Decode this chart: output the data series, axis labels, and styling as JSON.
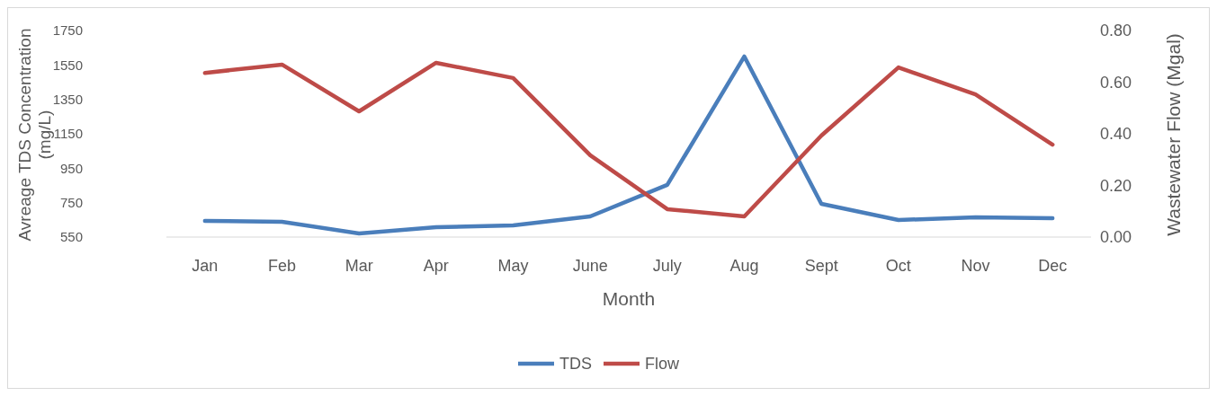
{
  "chart_data": {
    "type": "line",
    "xlabel": "Month",
    "ylabel": "Avreage TDS Concentration (mg/L)",
    "y2label": "Wastewater Flow (Mgal)",
    "categories": [
      "Jan",
      "Feb",
      "Mar",
      "Apr",
      "May",
      "June",
      "July",
      "Aug",
      "Sept",
      "Oct",
      "Nov",
      "Dec"
    ],
    "series": [
      {
        "name": "TDS",
        "color": "#4a7ebb",
        "values": [
          644,
          639,
          571,
          607,
          618,
          670,
          853,
          1599,
          743,
          649,
          665,
          660
        ]
      },
      {
        "name": "Flow",
        "color": "#be4b48",
        "axis": "y2",
        "values": [
          0.636,
          0.668,
          0.487,
          0.675,
          0.616,
          0.317,
          0.108,
          0.08,
          0.393,
          0.657,
          0.553,
          0.358
        ]
      }
    ],
    "ylim": [
      550,
      1750
    ],
    "yticks": [
      550,
      750,
      950,
      1150,
      1350,
      1550,
      1750
    ],
    "y2lim": [
      0,
      0.8
    ],
    "y2ticks": [
      {
        "value": 0,
        "label": "0.00"
      },
      {
        "value": 0.2,
        "label": "0.20"
      },
      {
        "value": 0.4,
        "label": "0.40"
      },
      {
        "value": 0.6,
        "label": "0.60"
      },
      {
        "value": 0.8,
        "label": "0.80"
      }
    ],
    "grid": false,
    "legend": "bottom",
    "line_style": "solid",
    "marker": "none"
  }
}
